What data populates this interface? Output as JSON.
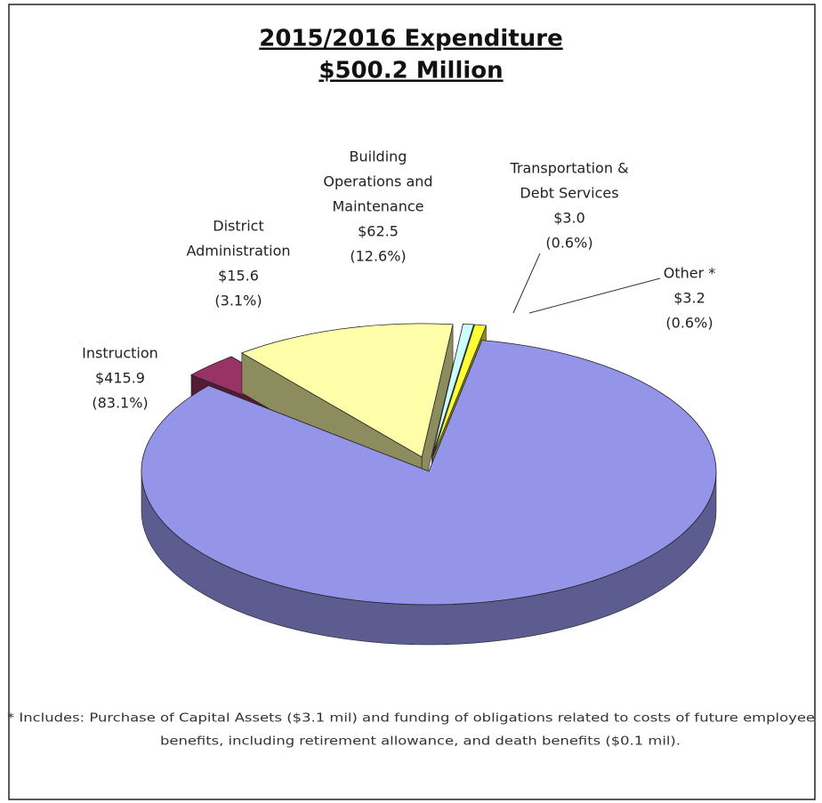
{
  "chart_data": {
    "type": "pie",
    "title": [
      "2015/2016 Expenditure",
      "$500.2 Million"
    ],
    "categories": [
      [
        "Instruction"
      ],
      [
        "District",
        "Administration"
      ],
      [
        "Building",
        "Operations  and",
        "Maintenance"
      ],
      [
        "Transportation &",
        "Debt Services"
      ],
      [
        "Other *"
      ]
    ],
    "values": [
      415.9,
      15.6,
      62.5,
      3.0,
      3.2
    ],
    "value_labels": [
      "$415.9",
      "$15.6",
      "$62.5",
      "$3.0",
      "$3.2"
    ],
    "percents": [
      83.1,
      3.1,
      12.6,
      0.6,
      0.6
    ],
    "percent_labels": [
      "(83.1%)",
      "(3.1%)",
      "(12.6%)",
      "(0.6%)",
      "(0.6%)"
    ],
    "colors": [
      "#9494e8",
      "#993366",
      "#ffffaa",
      "#ccffff",
      "#ffff33"
    ],
    "footnote": [
      "* Includes: Purchase of Capital Assets ($3.1 mil) and funding of obligations related to costs of future employee",
      "benefits, including retirement allowance, and death benefits ($0.1 mil)."
    ]
  }
}
